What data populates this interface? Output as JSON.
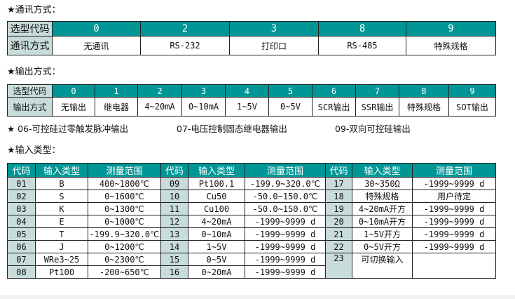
{
  "comm": {
    "title": "★通讯方式：",
    "label_code": "选型代码",
    "label_row": "通讯方式",
    "codes": [
      "0",
      "2",
      "3",
      "8",
      "9"
    ],
    "values": [
      "无通讯",
      "RS-232",
      "打印口",
      "RS-485",
      "特殊规格"
    ]
  },
  "output": {
    "title": "★输出方式：",
    "label_code": "选型代码",
    "label_row": "输出方式",
    "codes": [
      "0",
      "1",
      "2",
      "3",
      "4",
      "5",
      "6",
      "7",
      "8",
      "9"
    ],
    "values": [
      "无输出",
      "继电器",
      "4~20mA",
      "0~10mA",
      "1~5V",
      "0~5V",
      "SCR输出",
      "SSR输出",
      "特殊规格",
      "SOT输出"
    ],
    "notes": [
      "★ 06-可控硅过零触发脉冲输出",
      "07-电压控制固态继电器输出",
      "09-双向可控硅输出"
    ]
  },
  "input": {
    "title": "★输入类型：",
    "headers": [
      "代码",
      "输入类型",
      "测量范围",
      "代码",
      "输入类型",
      "测量范围",
      "代码",
      "输入类型",
      "测量范围"
    ],
    "rows": [
      [
        "01",
        "B",
        "400~1800℃",
        "09",
        "Pt100.1",
        "-199.9~320.0℃",
        "17",
        "30~350Ω",
        "-1999~9999 d"
      ],
      [
        "02",
        "S",
        "0~1600℃",
        "10",
        "Cu50",
        "-50.0~150.0℃",
        "18",
        "特殊规格",
        "用户待定"
      ],
      [
        "03",
        "K",
        "0~1300℃",
        "11",
        "Cu100",
        "-50.0~150.0℃",
        "19",
        "4~20mA开方",
        "-1999~9999 d"
      ],
      [
        "04",
        "E",
        "0~1000℃",
        "12",
        "4~20mA",
        "-1999~9999 d",
        "20",
        "0~10mA开方",
        "-1999~9999 d"
      ],
      [
        "05",
        "T",
        "-199.9~320.0℃",
        "13",
        "0~10mA",
        "-1999~9999 d",
        "21",
        "1~5V开方",
        "-1999~9999 d"
      ],
      [
        "06",
        "J",
        "0~1200℃",
        "14",
        "1~5V",
        "-1999~9999 d",
        "22",
        "0~5V开方",
        "-1999~9999 d"
      ],
      [
        "07",
        "WRe3~25",
        "0~2300℃",
        "15",
        "0~5V",
        "-1999~9999 d",
        "23",
        "可切换输入",
        ""
      ],
      [
        "08",
        "Pt100",
        "-200~650℃",
        "16",
        "0~20mA",
        "-1999~9999 d"
      ]
    ]
  },
  "colors": {
    "header": "#009696",
    "label_cell": "#c9dcdc"
  }
}
